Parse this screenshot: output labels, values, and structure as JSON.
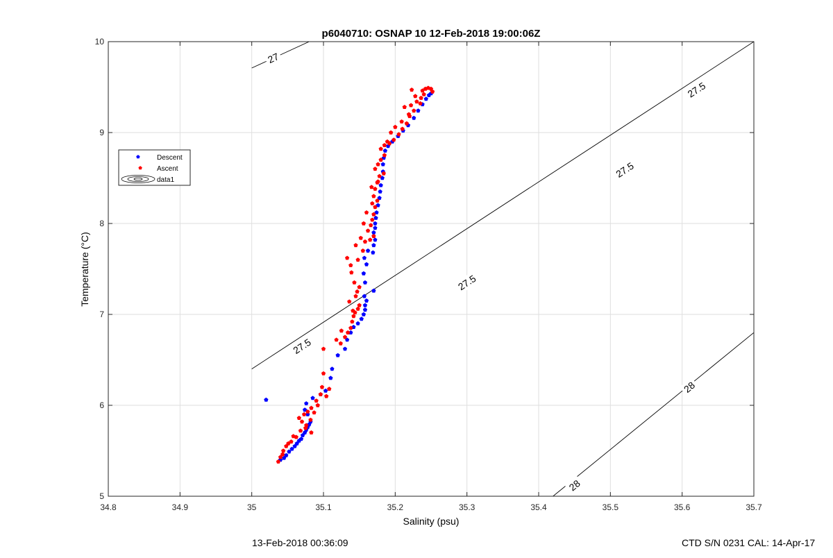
{
  "chart_data": {
    "type": "scatter",
    "title": "p6040710: OSNAP 10 12-Feb-2018 19:00:06Z",
    "xlabel": "Salinity (psu)",
    "ylabel": "Temperature (°C)",
    "xlim": [
      34.8,
      35.7
    ],
    "ylim": [
      5,
      10
    ],
    "xticks": [
      "34.8",
      "34.9",
      "35",
      "35.1",
      "35.2",
      "35.3",
      "35.4",
      "35.5",
      "35.6",
      "35.7"
    ],
    "yticks": [
      "5",
      "6",
      "7",
      "8",
      "9",
      "10"
    ],
    "grid": true,
    "legend_position": "upper-left",
    "legend": [
      "Descent",
      "Ascent",
      "data1"
    ],
    "colors": {
      "descent": "#0000ff",
      "ascent": "#ff0000",
      "contour": "#000000"
    },
    "series": [
      {
        "name": "Descent",
        "color": "#0000ff",
        "points": [
          [
            35.02,
            6.06
          ],
          [
            35.04,
            5.4
          ],
          [
            35.045,
            5.42
          ],
          [
            35.048,
            5.45
          ],
          [
            35.052,
            5.49
          ],
          [
            35.056,
            5.52
          ],
          [
            35.06,
            5.55
          ],
          [
            35.063,
            5.58
          ],
          [
            35.066,
            5.61
          ],
          [
            35.069,
            5.63
          ],
          [
            35.071,
            5.67
          ],
          [
            35.074,
            5.7
          ],
          [
            35.076,
            5.73
          ],
          [
            35.078,
            5.76
          ],
          [
            35.08,
            5.79
          ],
          [
            35.082,
            5.82
          ],
          [
            35.078,
            5.9
          ],
          [
            35.074,
            5.95
          ],
          [
            35.076,
            6.02
          ],
          [
            35.085,
            6.08
          ],
          [
            35.096,
            6.12
          ],
          [
            35.103,
            6.16
          ],
          [
            35.11,
            6.3
          ],
          [
            35.112,
            6.4
          ],
          [
            35.12,
            6.55
          ],
          [
            35.13,
            6.62
          ],
          [
            35.133,
            6.72
          ],
          [
            35.138,
            6.8
          ],
          [
            35.142,
            6.86
          ],
          [
            35.148,
            6.9
          ],
          [
            35.153,
            6.95
          ],
          [
            35.156,
            7.0
          ],
          [
            35.158,
            7.05
          ],
          [
            35.158,
            7.1
          ],
          [
            35.16,
            7.15
          ],
          [
            35.157,
            7.2
          ],
          [
            35.17,
            7.26
          ],
          [
            35.158,
            7.35
          ],
          [
            35.156,
            7.45
          ],
          [
            35.16,
            7.55
          ],
          [
            35.157,
            7.62
          ],
          [
            35.162,
            7.7
          ],
          [
            35.169,
            7.68
          ],
          [
            35.17,
            7.76
          ],
          [
            35.172,
            7.82
          ],
          [
            35.17,
            7.9
          ],
          [
            35.172,
            7.95
          ],
          [
            35.172,
            8.0
          ],
          [
            35.173,
            8.06
          ],
          [
            35.174,
            8.12
          ],
          [
            35.176,
            8.2
          ],
          [
            35.178,
            8.28
          ],
          [
            35.179,
            8.35
          ],
          [
            35.18,
            8.42
          ],
          [
            35.182,
            8.5
          ],
          [
            35.183,
            8.57
          ],
          [
            35.183,
            8.65
          ],
          [
            35.184,
            8.72
          ],
          [
            35.186,
            8.8
          ],
          [
            35.19,
            8.85
          ],
          [
            35.196,
            8.9
          ],
          [
            35.204,
            8.96
          ],
          [
            35.211,
            9.02
          ],
          [
            35.218,
            9.08
          ],
          [
            35.226,
            9.16
          ],
          [
            35.232,
            9.24
          ],
          [
            35.238,
            9.31
          ],
          [
            35.243,
            9.37
          ],
          [
            35.247,
            9.41
          ],
          [
            35.25,
            9.43
          ]
        ]
      },
      {
        "name": "Ascent",
        "color": "#ff0000",
        "points": [
          [
            35.037,
            5.38
          ],
          [
            35.04,
            5.43
          ],
          [
            35.044,
            5.5
          ],
          [
            35.048,
            5.55
          ],
          [
            35.055,
            5.6
          ],
          [
            35.062,
            5.65
          ],
          [
            35.068,
            5.72
          ],
          [
            35.075,
            5.75
          ],
          [
            35.083,
            5.7
          ],
          [
            35.07,
            5.82
          ],
          [
            35.066,
            5.86
          ],
          [
            35.073,
            5.9
          ],
          [
            35.078,
            5.93
          ],
          [
            35.083,
            5.97
          ],
          [
            35.09,
            6.05
          ],
          [
            35.096,
            6.12
          ],
          [
            35.098,
            6.2
          ],
          [
            35.108,
            6.18
          ],
          [
            35.1,
            6.35
          ],
          [
            35.1,
            6.62
          ],
          [
            35.118,
            6.72
          ],
          [
            35.124,
            6.68
          ],
          [
            35.13,
            6.75
          ],
          [
            35.134,
            6.8
          ],
          [
            35.138,
            6.85
          ],
          [
            35.14,
            6.92
          ],
          [
            35.142,
            6.98
          ],
          [
            35.144,
            7.02
          ],
          [
            35.148,
            7.06
          ],
          [
            35.15,
            7.1
          ],
          [
            35.145,
            7.2
          ],
          [
            35.147,
            7.25
          ],
          [
            35.143,
            7.35
          ],
          [
            35.15,
            7.3
          ],
          [
            35.139,
            7.46
          ],
          [
            35.133,
            7.62
          ],
          [
            35.148,
            7.6
          ],
          [
            35.155,
            7.7
          ],
          [
            35.158,
            7.8
          ],
          [
            35.165,
            7.82
          ],
          [
            35.17,
            7.86
          ],
          [
            35.162,
            7.92
          ],
          [
            35.166,
            7.98
          ],
          [
            35.168,
            8.04
          ],
          [
            35.17,
            8.1
          ],
          [
            35.172,
            8.18
          ],
          [
            35.175,
            8.25
          ],
          [
            35.17,
            8.3
          ],
          [
            35.172,
            8.38
          ],
          [
            35.175,
            8.45
          ],
          [
            35.178,
            8.52
          ],
          [
            35.184,
            8.55
          ],
          [
            35.172,
            8.6
          ],
          [
            35.176,
            8.65
          ],
          [
            35.18,
            8.7
          ],
          [
            35.185,
            8.75
          ],
          [
            35.18,
            8.82
          ],
          [
            35.185,
            8.86
          ],
          [
            35.192,
            8.88
          ],
          [
            35.198,
            8.92
          ],
          [
            35.205,
            8.98
          ],
          [
            35.21,
            9.04
          ],
          [
            35.216,
            9.1
          ],
          [
            35.22,
            9.18
          ],
          [
            35.226,
            9.24
          ],
          [
            35.222,
            9.3
          ],
          [
            35.23,
            9.34
          ],
          [
            35.236,
            9.38
          ],
          [
            35.24,
            9.42
          ],
          [
            35.238,
            9.46
          ],
          [
            35.242,
            9.48
          ],
          [
            35.246,
            9.49
          ],
          [
            35.25,
            9.48
          ],
          [
            35.252,
            9.45
          ],
          [
            35.223,
            9.47
          ],
          [
            35.228,
            9.4
          ],
          [
            35.235,
            9.32
          ],
          [
            35.213,
            9.28
          ],
          [
            35.219,
            9.2
          ],
          [
            35.209,
            9.12
          ],
          [
            35.2,
            9.06
          ],
          [
            35.194,
            9.0
          ],
          [
            35.189,
            8.9
          ],
          [
            35.176,
            8.46
          ],
          [
            35.167,
            8.4
          ],
          [
            35.168,
            8.22
          ],
          [
            35.16,
            8.12
          ],
          [
            35.156,
            8.0
          ],
          [
            35.152,
            7.84
          ],
          [
            35.145,
            7.76
          ],
          [
            35.138,
            7.54
          ],
          [
            35.136,
            7.14
          ],
          [
            35.141,
            7.04
          ],
          [
            35.125,
            6.82
          ],
          [
            35.104,
            6.1
          ],
          [
            35.092,
            6.0
          ],
          [
            35.087,
            5.92
          ],
          [
            35.082,
            5.84
          ],
          [
            35.076,
            5.78
          ],
          [
            35.058,
            5.66
          ],
          [
            35.051,
            5.58
          ],
          [
            35.043,
            5.46
          ]
        ]
      }
    ],
    "contours": [
      {
        "label": "27",
        "segments": [
          [
            [
              35.0,
              9.71
            ],
            [
              35.08,
              10.0
            ]
          ]
        ]
      },
      {
        "label": "27.5",
        "segments": [
          [
            [
              35.0,
              6.4
            ],
            [
              35.7,
              10.0
            ]
          ]
        ]
      },
      {
        "label": "28",
        "segments": [
          [
            [
              35.42,
              5.0
            ],
            [
              35.7,
              6.8
            ]
          ]
        ]
      }
    ],
    "contour_labels": [
      {
        "text": "27",
        "x": 35.03,
        "y": 9.82
      },
      {
        "text": "27.5",
        "x": 35.07,
        "y": 6.65
      },
      {
        "text": "27.5",
        "x": 35.3,
        "y": 7.35
      },
      {
        "text": "27.5",
        "x": 35.52,
        "y": 8.59
      },
      {
        "text": "27.5",
        "x": 35.62,
        "y": 9.47
      },
      {
        "text": "28",
        "x": 35.45,
        "y": 5.12
      },
      {
        "text": "28",
        "x": 35.61,
        "y": 6.2
      }
    ]
  },
  "footer": {
    "left": "13-Feb-2018 00:36:09",
    "right": "CTD S/N 0231  CAL: 14-Apr-17"
  }
}
